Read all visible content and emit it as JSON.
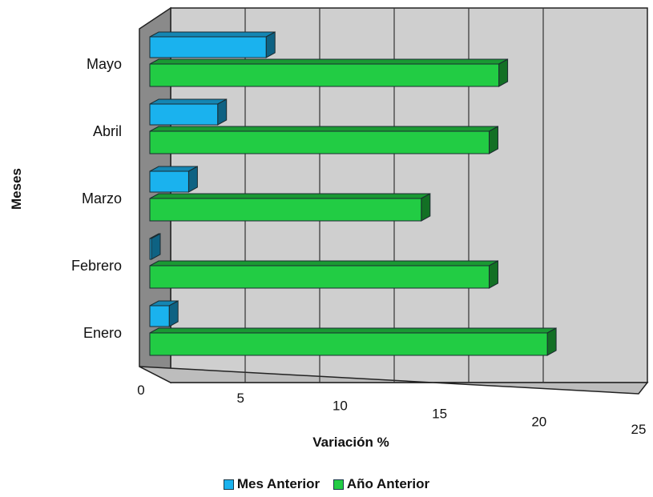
{
  "chart_data": {
    "type": "bar",
    "orientation": "horizontal",
    "categories": [
      "Enero",
      "Febrero",
      "Marzo",
      "Abril",
      "Mayo"
    ],
    "series": [
      {
        "name": "Mes Anterior",
        "color": "#1ab2ee",
        "values": [
          1.0,
          0.0,
          2.0,
          3.5,
          6.0
        ]
      },
      {
        "name": "Año Anterior",
        "color": "#22cc44",
        "values": [
          20.5,
          17.5,
          14.0,
          17.5,
          18.0
        ]
      }
    ],
    "xlabel": "Variación %",
    "ylabel": "Meses",
    "xlim": [
      0,
      25
    ],
    "xticks": [
      "0",
      "5",
      "10",
      "15",
      "20",
      "25"
    ],
    "grid": true,
    "legend_position": "bottom",
    "style": "3d"
  }
}
